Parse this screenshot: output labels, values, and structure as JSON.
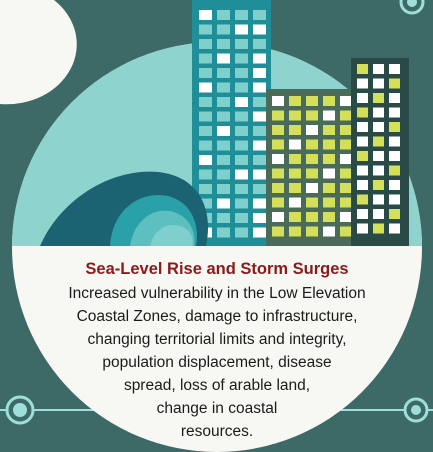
{
  "colors": {
    "background": "#3d6a66",
    "circle": "#f7f7f3",
    "sky": "#8fd3ce",
    "building_teal": "#1f8e99",
    "building_dark": "#2a4a48",
    "building_olive": "#4a6a5a",
    "window_white": "#ffffff",
    "window_yellow": "#d4e05a",
    "wave_dark": "#1b6272",
    "wave_mid": "#2aa0a8",
    "wave_light": "#7fd0cc",
    "title_red": "#8b1a1a",
    "connector": "#9edfd9"
  },
  "panel": {
    "title": "Sea-Level Rise and Storm Surges",
    "lines": [
      "Increased vulnerability in the Low Elevation",
      "Coastal Zones, damage to infrastructure,",
      "changing territorial limits and integrity,",
      "population displacement, disease",
      "spread, loss of arable land,",
      "change in coastal",
      "resources."
    ]
  },
  "illustration": {
    "buildings": [
      "tall-teal-building",
      "mid-olive-building",
      "right-dark-building"
    ],
    "icons": [
      "wave-icon"
    ]
  }
}
